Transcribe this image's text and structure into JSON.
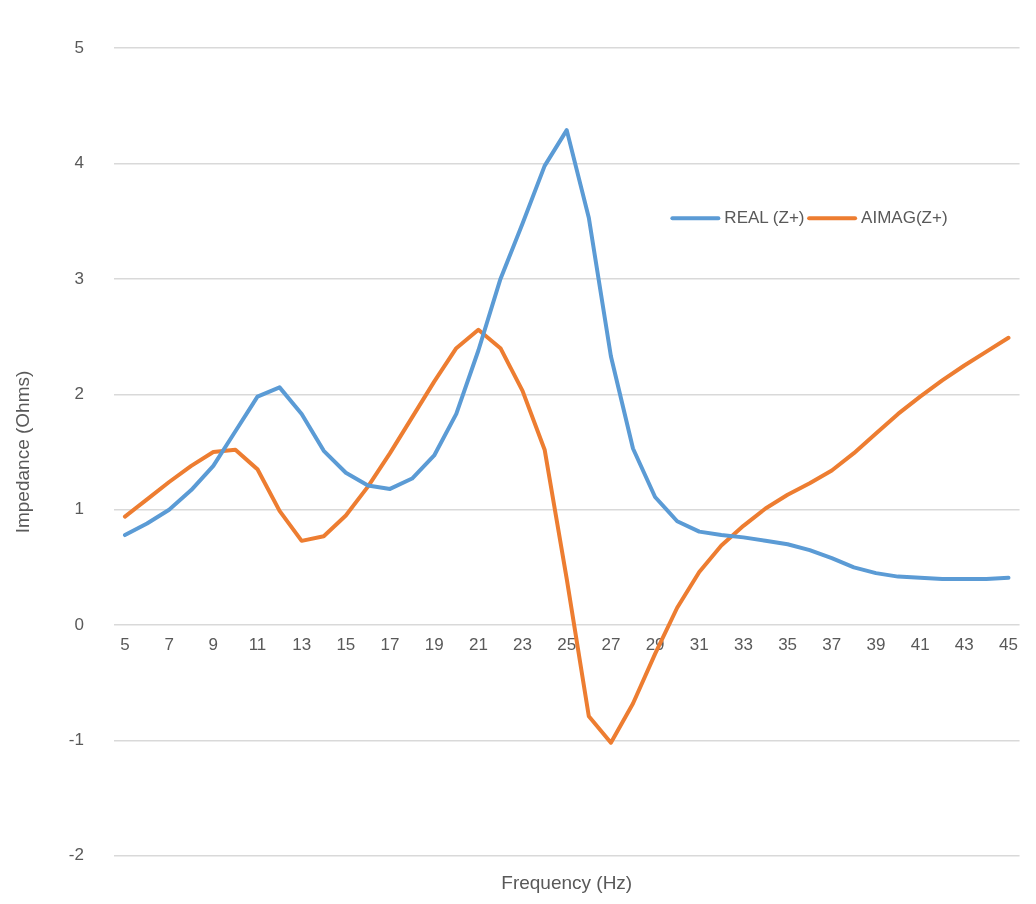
{
  "chart_data": {
    "type": "line",
    "xlabel": "Frequency (Hz)",
    "ylabel": "Impedance (Ohms)",
    "categories": [
      "5",
      null,
      "7",
      null,
      "9",
      null,
      "11",
      null,
      "13",
      null,
      "15",
      null,
      "17",
      null,
      "19",
      null,
      "21",
      null,
      "23",
      null,
      "25",
      null,
      "27",
      null,
      "29",
      null,
      "31",
      null,
      "33",
      null,
      "35",
      null,
      "37",
      null,
      "39",
      null,
      "41",
      null,
      "43",
      null,
      "45"
    ],
    "series": [
      {
        "name": "REAL (Z+)",
        "color": "#5b9bd5",
        "values": [
          0.78,
          0.88,
          1.0,
          1.17,
          1.38,
          1.68,
          1.98,
          2.06,
          1.83,
          1.51,
          1.32,
          1.21,
          1.18,
          1.27,
          1.47,
          1.83,
          2.38,
          3.0,
          3.48,
          3.98,
          4.29,
          3.53,
          2.33,
          1.53,
          1.11,
          0.9,
          0.81,
          0.78,
          0.76,
          0.73,
          0.7,
          0.65,
          0.58,
          0.5,
          0.45,
          0.42,
          0.41,
          0.4,
          0.4,
          0.4,
          0.41
        ]
      },
      {
        "name": "AIMAG(Z+)",
        "color": "#ed7d31",
        "values": [
          0.94,
          1.09,
          1.24,
          1.38,
          1.5,
          1.52,
          1.35,
          0.99,
          0.73,
          0.77,
          0.95,
          1.2,
          1.49,
          1.8,
          2.11,
          2.4,
          2.56,
          2.4,
          2.03,
          1.52,
          0.4,
          -0.79,
          -1.02,
          -0.68,
          -0.25,
          0.15,
          0.46,
          0.69,
          0.86,
          1.01,
          1.13,
          1.23,
          1.34,
          1.49,
          1.66,
          1.83,
          1.98,
          2.12,
          2.25,
          2.37,
          2.49
        ]
      }
    ],
    "ylim": [
      -2,
      5
    ],
    "yticks": [
      -2,
      -1,
      0,
      1,
      2,
      3,
      4,
      5
    ],
    "grid": "y",
    "legend": "top right",
    "marker": "none",
    "line_style": "solid"
  }
}
